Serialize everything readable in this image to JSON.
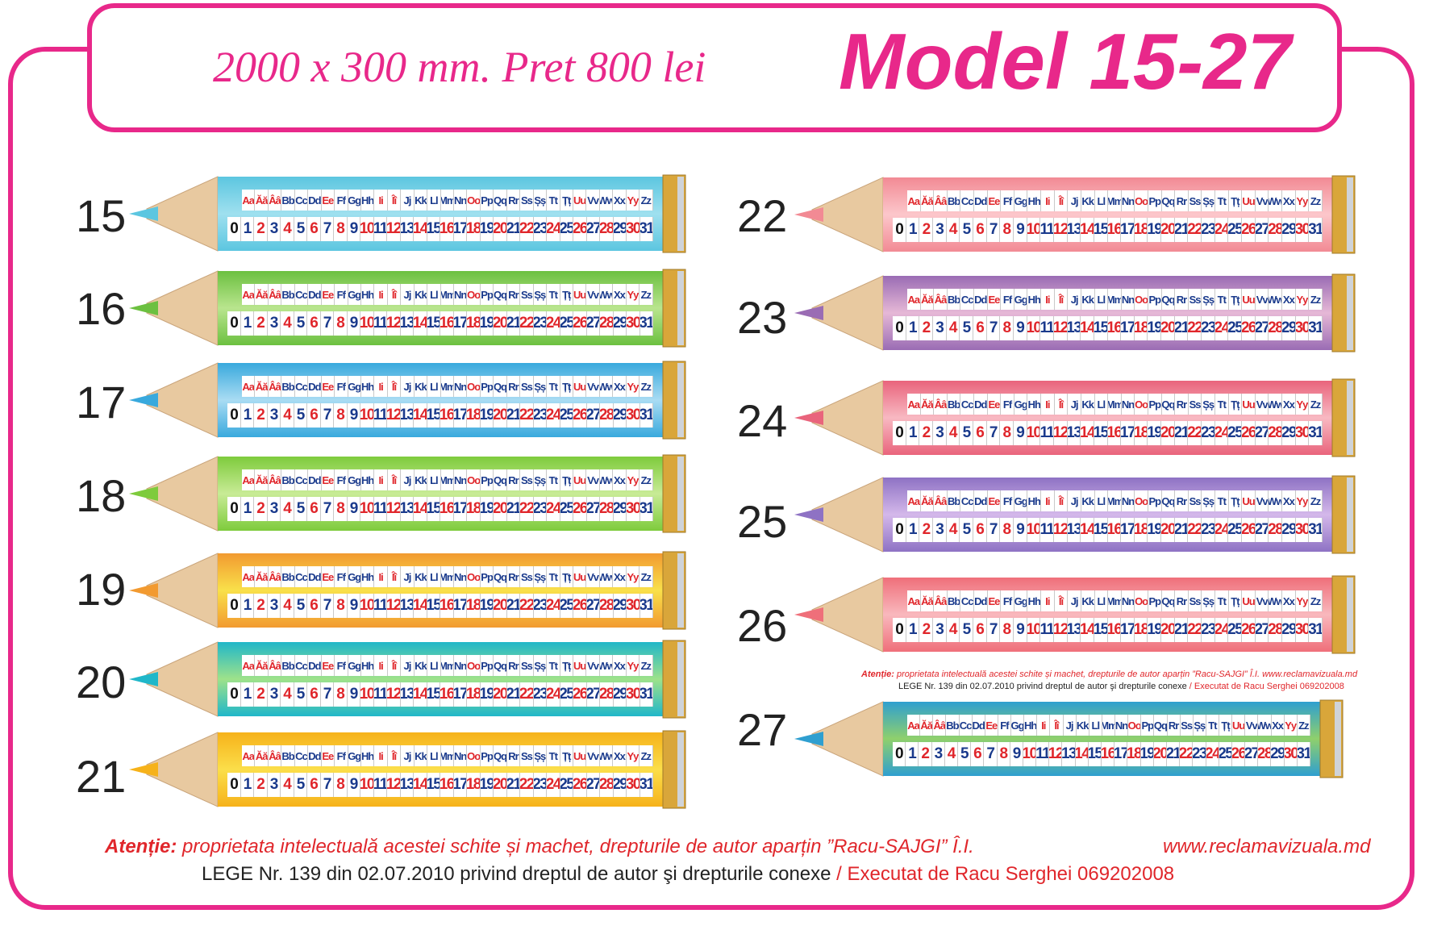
{
  "header": {
    "subtitle": "2000 x 300 mm. Pret 800 lei",
    "title": "Model 15-27"
  },
  "letters": [
    "Aa",
    "Ăă",
    "Ââ",
    "Bb",
    "Cc",
    "Dd",
    "Ee",
    "Ff",
    "Gg",
    "Hh",
    "Ii",
    "Îî",
    "Jj",
    "Kk",
    "Ll",
    "Mm",
    "Nn",
    "Oo",
    "Pp",
    "Qq",
    "Rr",
    "Ss",
    "Șș",
    "Tt",
    "Țț",
    "Uu",
    "Vv",
    "Ww",
    "Xx",
    "Yy",
    "Zz"
  ],
  "digits": [
    "0",
    "1",
    "2",
    "3",
    "4",
    "5",
    "6",
    "7",
    "8",
    "9",
    "10",
    "11",
    "12",
    "13",
    "14",
    "15",
    "16",
    "17",
    "18",
    "19",
    "20",
    "21",
    "22",
    "23",
    "24",
    "25",
    "26",
    "27",
    "28",
    "29",
    "30",
    "31"
  ],
  "pencils": [
    {
      "number": "15",
      "colors": [
        "#5cc6e0",
        "#9fe0ef"
      ]
    },
    {
      "number": "16",
      "colors": [
        "#6cc040",
        "#b9e58e"
      ]
    },
    {
      "number": "17",
      "colors": [
        "#39a9dd",
        "#a9dcf3"
      ]
    },
    {
      "number": "18",
      "colors": [
        "#7ecb3c",
        "#c8eb96"
      ]
    },
    {
      "number": "19",
      "colors": [
        "#f29a30",
        "#f9e04a"
      ]
    },
    {
      "number": "20",
      "colors": [
        "#20b7c9",
        "#9ee28a"
      ]
    },
    {
      "number": "21",
      "colors": [
        "#f6b21a",
        "#fbde4a"
      ]
    },
    {
      "number": "22",
      "colors": [
        "#f28a94",
        "#fcc7cb"
      ]
    },
    {
      "number": "23",
      "colors": [
        "#9a6cb4",
        "#e6b8d6"
      ]
    },
    {
      "number": "24",
      "colors": [
        "#e9647c",
        "#f8b9c2"
      ]
    },
    {
      "number": "25",
      "colors": [
        "#8e72c4",
        "#d4b8ea"
      ]
    },
    {
      "number": "26",
      "colors": [
        "#ef6f7a",
        "#f9b8bd"
      ]
    },
    {
      "number": "27",
      "colors": [
        "#2f9fd0",
        "#8fd06c"
      ]
    }
  ],
  "footer": {
    "attention_label": "Atenție:",
    "attention_text": " proprietata intelectuală acestei schite și machet, drepturile de autor aparțin ”Racu-SAJGI” Î.I.",
    "url": "www.reclamavizuala.md",
    "law_text": "LEGE Nr. 139 din  02.07.2010 privind dreptul de autor şi drepturile conexe",
    "executed": " / Executat de Racu Serghei 069202008"
  },
  "colors": {
    "accent": "#e8288a",
    "letter_blue": "#1a3a8c",
    "letter_red": "#e0262b"
  }
}
